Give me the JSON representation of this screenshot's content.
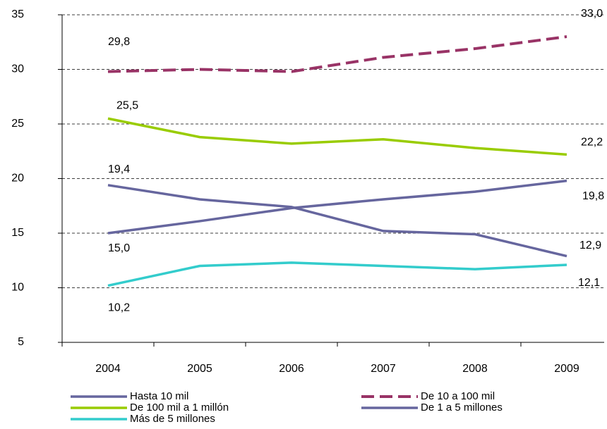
{
  "chart_data": {
    "type": "line",
    "categories": [
      "2004",
      "2005",
      "2006",
      "2007",
      "2008",
      "2009"
    ],
    "ylim": [
      5,
      35
    ],
    "yticks": [
      5,
      10,
      15,
      20,
      25,
      30,
      35
    ],
    "grid": true,
    "series": [
      {
        "name": "Hasta 10 mil",
        "color": "#66669e",
        "dash": false,
        "values": [
          19.4,
          18.1,
          17.4,
          15.2,
          14.9,
          12.9
        ],
        "value_labels": [
          "19,4",
          null,
          null,
          null,
          null,
          "12,9"
        ]
      },
      {
        "name": "De 10 a 100 mil",
        "color": "#993366",
        "dash": true,
        "values": [
          29.8,
          30.0,
          29.8,
          31.1,
          31.9,
          33.0
        ],
        "value_labels": [
          "29,8",
          null,
          null,
          null,
          null,
          "33,0"
        ]
      },
      {
        "name": "De 100 mil a 1 millón",
        "color": "#99cc00",
        "dash": false,
        "values": [
          25.5,
          23.8,
          23.2,
          23.6,
          22.8,
          22.2
        ],
        "value_labels": [
          "25,5",
          null,
          null,
          null,
          null,
          "22,2"
        ]
      },
      {
        "name": "De 1 a 5 millones",
        "color": "#66669e",
        "dash": false,
        "values": [
          15.0,
          16.1,
          17.3,
          18.1,
          18.8,
          19.8
        ],
        "value_labels": [
          "15,0",
          null,
          null,
          null,
          null,
          "19,8"
        ]
      },
      {
        "name": "Más de 5 millones",
        "color": "#33cccc",
        "dash": false,
        "values": [
          10.2,
          12.0,
          12.3,
          12.0,
          11.7,
          12.1
        ],
        "value_labels": [
          "10,2",
          null,
          null,
          null,
          null,
          "12,1"
        ]
      }
    ]
  }
}
